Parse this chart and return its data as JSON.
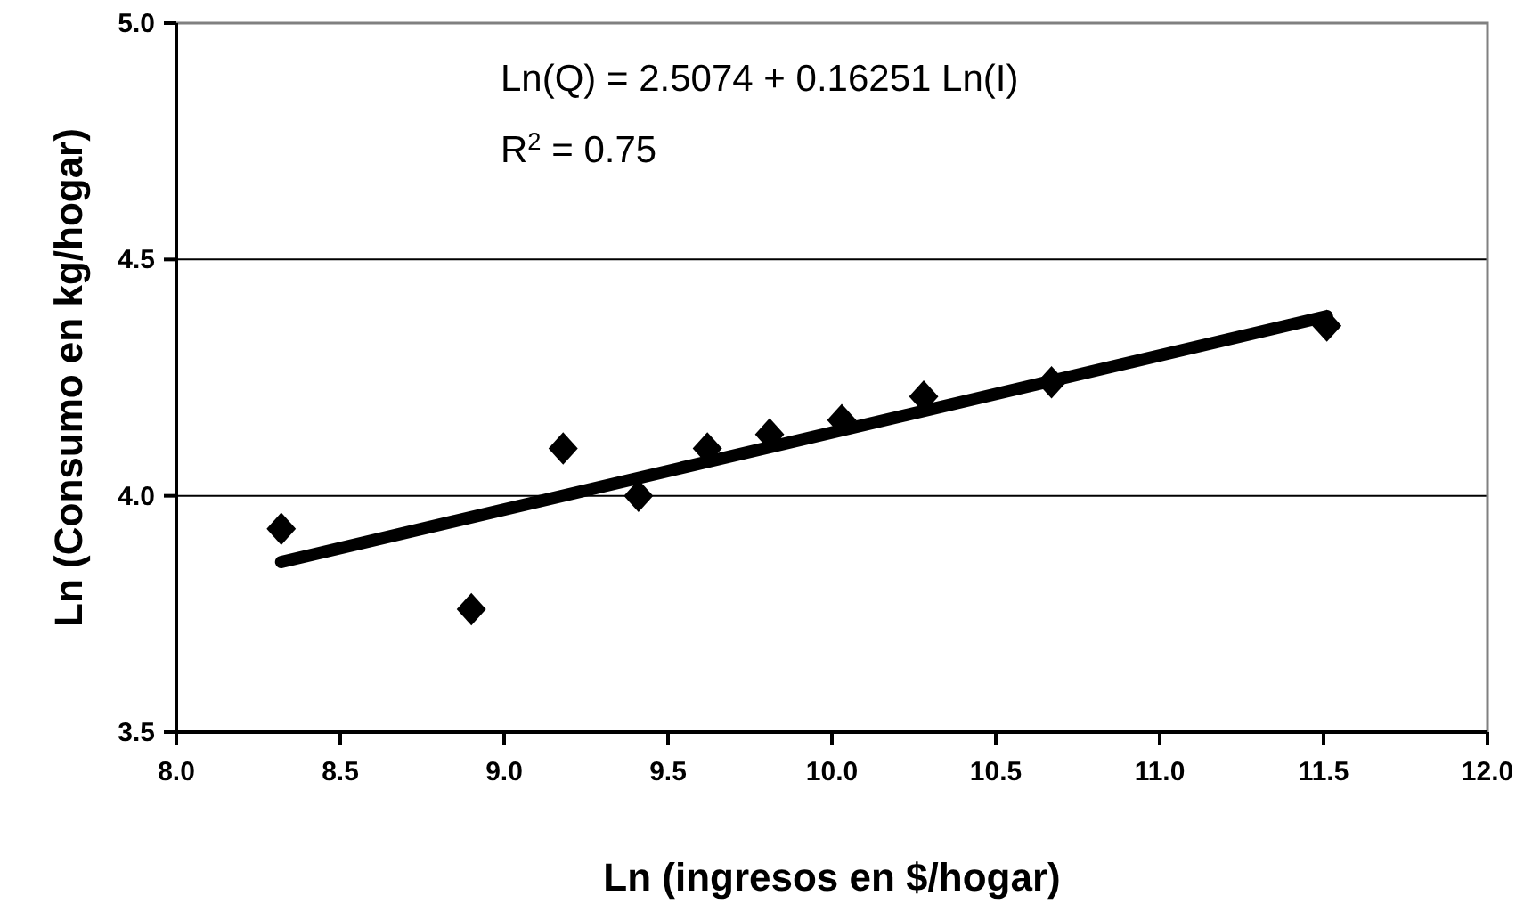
{
  "chart_data": {
    "type": "scatter",
    "xlabel": "Ln (ingresos en $/hogar)",
    "ylabel": "Ln (Consumo en kg/hogar)",
    "annotations": [
      "Ln(Q) = 2.5074  + 0.16251 Ln(I)",
      "R$^{2}$ = 0.75"
    ],
    "x": [
      8.32,
      8.9,
      9.18,
      9.41,
      9.62,
      9.81,
      10.03,
      10.28,
      10.67,
      11.51
    ],
    "series": [
      {
        "color": "#000000",
        "marker": "diamond",
        "values": [
          3.93,
          3.76,
          4.1,
          4.0,
          4.1,
          4.13,
          4.16,
          4.21,
          4.24,
          4.36
        ]
      },
      {
        "type": "line",
        "color": "#000000",
        "x": [
          8.32,
          11.51
        ],
        "values": [
          3.86,
          4.38
        ]
      }
    ],
    "xlim": [
      8.0,
      12.0
    ],
    "ylim": [
      3.5,
      5.0
    ],
    "xticks": [
      {
        "value": 8,
        "label": "8.0"
      },
      8.5,
      {
        "value": 9,
        "label": "9.0"
      },
      9.5,
      {
        "value": 10,
        "label": "10.0"
      },
      10.5,
      {
        "value": 11,
        "label": "11.0"
      },
      11.5,
      {
        "value": 12,
        "label": "12.0"
      }
    ],
    "yticks": [
      {
        "value": 3.5,
        "label": "3.5"
      },
      {
        "value": 4,
        "label": "4.0"
      },
      {
        "value": 4.5,
        "label": "4.5"
      },
      {
        "value": 5,
        "label": "5.0"
      }
    ],
    "grid": "y"
  }
}
